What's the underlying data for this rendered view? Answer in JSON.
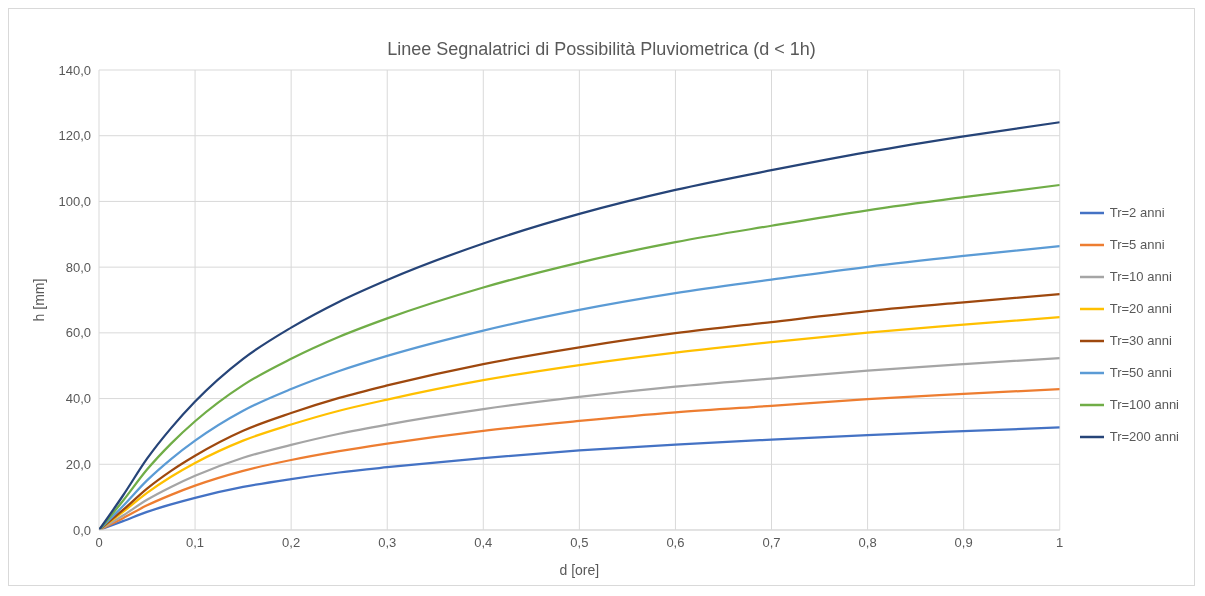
{
  "chart_data": {
    "type": "line",
    "title": "Linee Segnalatrici di Possibilità Pluviometrica (d < 1h)",
    "xlabel": "d [ore]",
    "ylabel": "h [mm]",
    "x": [
      0,
      0.025,
      0.05,
      0.075,
      0.1,
      0.15,
      0.2,
      0.25,
      0.3,
      0.4,
      0.5,
      0.6,
      0.7,
      0.8,
      0.9,
      1
    ],
    "series": [
      {
        "name": "Tr=2 anni",
        "color": "#4472c4",
        "values": [
          0,
          2.7,
          5.5,
          7.8,
          9.8,
          13.1,
          15.5,
          17.5,
          19.1,
          21.9,
          24.2,
          26.0,
          27.5,
          28.9,
          30.1,
          31.2
        ]
      },
      {
        "name": "Tr=5 anni",
        "color": "#ed7d31",
        "values": [
          0,
          3.6,
          7.5,
          10.7,
          13.5,
          18.0,
          21.3,
          24.0,
          26.3,
          30.2,
          33.2,
          35.8,
          37.8,
          39.8,
          41.4,
          42.9
        ]
      },
      {
        "name": "Tr=10 anni",
        "color": "#a5a5a5",
        "values": [
          0,
          4.4,
          9.2,
          13.1,
          16.5,
          22.0,
          25.9,
          29.3,
          32.1,
          36.8,
          40.5,
          43.6,
          46.1,
          48.5,
          50.5,
          52.3
        ]
      },
      {
        "name": "Tr=20 anni",
        "color": "#ffc000",
        "values": [
          0,
          5.5,
          11.3,
          16.2,
          20.4,
          27.2,
          32.1,
          36.3,
          39.7,
          45.6,
          50.2,
          54.0,
          57.2,
          60.1,
          62.5,
          64.8
        ]
      },
      {
        "name": "Tr=30 anni",
        "color": "#9e480e",
        "values": [
          0,
          6.1,
          12.6,
          18.0,
          22.6,
          30.2,
          35.6,
          40.2,
          44.0,
          50.5,
          55.6,
          59.9,
          63.3,
          66.6,
          69.3,
          71.8
        ]
      },
      {
        "name": "Tr=50 anni",
        "color": "#5b9bd5",
        "values": [
          0,
          7.3,
          15.1,
          21.6,
          27.2,
          36.3,
          42.9,
          48.4,
          53.0,
          60.7,
          67.0,
          72.1,
          76.2,
          80.1,
          83.4,
          86.4
        ]
      },
      {
        "name": "Tr=100 anni",
        "color": "#70ad47",
        "values": [
          0,
          8.9,
          18.4,
          26.3,
          33.1,
          44.1,
          52.1,
          58.8,
          64.4,
          73.8,
          81.4,
          87.6,
          92.6,
          97.3,
          101.3,
          105.0
        ]
      },
      {
        "name": "Tr=200 anni",
        "color": "#264478",
        "values": [
          0,
          10.5,
          21.7,
          31.0,
          39.1,
          52.1,
          61.6,
          69.5,
          76.1,
          87.2,
          96.2,
          103.5,
          109.5,
          115.0,
          119.8,
          124.1
        ]
      }
    ],
    "xlim": [
      0,
      1
    ],
    "xticks": [
      0,
      {
        "value": 0.1,
        "label": "0,1"
      },
      {
        "value": 0.2,
        "label": "0,2"
      },
      {
        "value": 0.3,
        "label": "0,3"
      },
      {
        "value": 0.4,
        "label": "0,4"
      },
      {
        "value": 0.5,
        "label": "0,5"
      },
      {
        "value": 0.6,
        "label": "0,6"
      },
      {
        "value": 0.7,
        "label": "0,7"
      },
      {
        "value": 0.8,
        "label": "0,8"
      },
      {
        "value": 0.9,
        "label": "0,9"
      },
      1
    ],
    "ylim": [
      0,
      140
    ],
    "yticks": [
      {
        "value": 0,
        "label": "0,0"
      },
      {
        "value": 20,
        "label": "20,0"
      },
      {
        "value": 40,
        "label": "40,0"
      },
      {
        "value": 60,
        "label": "60,0"
      },
      {
        "value": 80,
        "label": "80,0"
      },
      {
        "value": 100,
        "label": "100,0"
      },
      {
        "value": 120,
        "label": "120,0"
      },
      {
        "value": 140,
        "label": "140,0"
      }
    ],
    "grid": true,
    "legend": "right",
    "marker": "none",
    "line_style": "solid"
  }
}
